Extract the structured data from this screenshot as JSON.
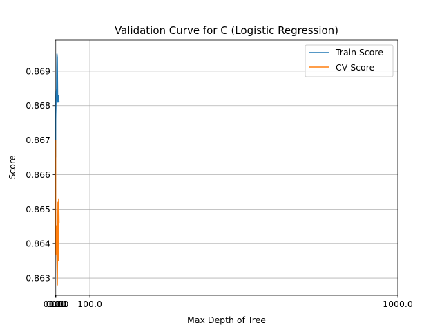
{
  "chart_data": {
    "type": "line",
    "title": "Validation Curve for C (Logistic Regression)",
    "xlabel": "Max Depth of Tree",
    "ylabel": "Score",
    "xlim": [
      -1,
      1000
    ],
    "ylim": [
      0.8625,
      0.8699
    ],
    "xticks": [
      0.001,
      0.01,
      0.1,
      1.0,
      10.0,
      100.0,
      1000.0
    ],
    "xtick_labels": [
      "0.001",
      "0.01",
      "0.1",
      "1.0",
      "10.0",
      "100.0",
      "1000.0"
    ],
    "yticks": [
      0.863,
      0.864,
      0.865,
      0.866,
      0.867,
      0.868,
      0.869
    ],
    "ytick_labels": [
      "0.863",
      "0.864",
      "0.865",
      "0.866",
      "0.867",
      "0.868",
      "0.869"
    ],
    "grid": true,
    "legend_position": "top-right",
    "x": [
      0.001,
      0.01,
      0.1,
      1.0,
      2.0,
      3.0,
      4.0,
      5.0,
      6.0,
      7.0,
      8.0,
      9.0,
      10.0
    ],
    "series": [
      {
        "name": "Train Score",
        "color": "#1f77b4",
        "values": [
          0.8665,
          0.8671,
          0.8676,
          0.868,
          0.8684,
          0.8685,
          0.8695,
          0.8694,
          0.8682,
          0.8681,
          0.8683,
          0.8682,
          0.8681
        ]
      },
      {
        "name": "CV Score",
        "color": "#ff7f0e",
        "values": [
          0.867,
          0.8658,
          0.8646,
          0.8637,
          0.8645,
          0.864,
          0.8636,
          0.8628,
          0.864,
          0.8652,
          0.8635,
          0.8653,
          0.8646
        ]
      }
    ]
  }
}
